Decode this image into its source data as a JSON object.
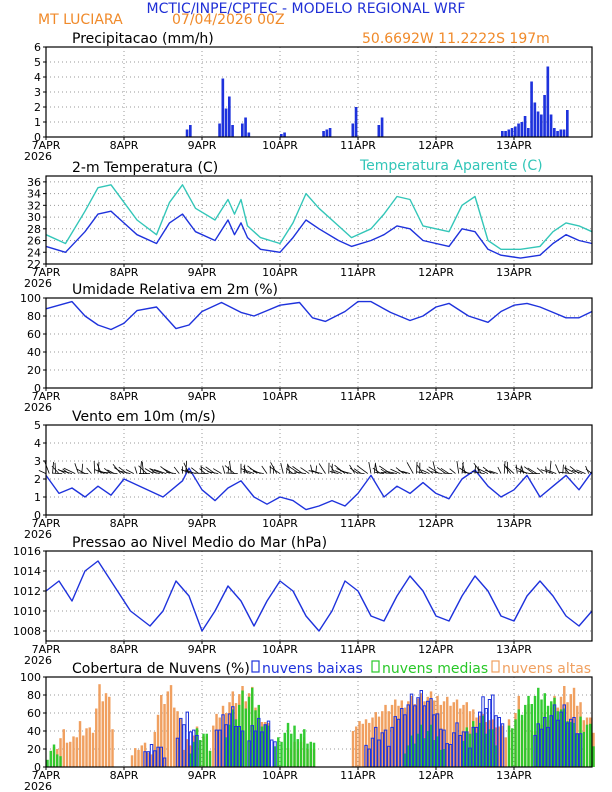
{
  "header": {
    "title": "MCTIC/INPE/CPTEC - MODELO REGIONAL WRF",
    "station": "MT LUCIARA",
    "run": "07/04/2026 00Z",
    "coords": "50.6692W 11.2222S 197m",
    "title_color": "#1f2fd6",
    "info_color": "#f08a2a"
  },
  "x_axis": {
    "days": [
      "7APR",
      "8APR",
      "9APR",
      "10APR",
      "11APR",
      "12APR",
      "13APR"
    ],
    "year": "2026",
    "range_hours": [
      0,
      168
    ]
  },
  "colors": {
    "blue": "#1e32dc",
    "cyan": "#33c6b8",
    "green": "#28c828",
    "orange": "#f0a060",
    "black": "#000000"
  },
  "chart_data": [
    {
      "id": "precip",
      "type": "bar",
      "title": "Precipitacao (mm/h)",
      "ylim": [
        0,
        6
      ],
      "yticks": [
        "0",
        "1",
        "2",
        "3",
        "4",
        "5",
        "6"
      ],
      "x_unit": "hours since 7APR 00Z",
      "x": [
        43,
        44,
        53,
        54,
        55,
        56,
        57,
        60,
        61,
        62,
        72,
        73,
        85,
        86,
        87,
        94,
        95,
        102,
        103,
        140,
        141,
        142,
        143,
        144,
        145,
        146,
        147,
        148,
        149,
        150,
        151,
        152,
        153,
        154,
        155,
        156,
        157,
        158,
        159,
        160
      ],
      "values": [
        0.5,
        0.8,
        0.9,
        3.9,
        1.9,
        2.7,
        0.8,
        0.9,
        1.3,
        0.3,
        0.2,
        0.3,
        0.4,
        0.5,
        0.6,
        0.9,
        2.0,
        0.8,
        1.3,
        0.4,
        0.4,
        0.5,
        0.6,
        0.7,
        0.9,
        1.0,
        1.4,
        0.6,
        3.7,
        2.3,
        1.7,
        1.5,
        2.8,
        4.7,
        1.5,
        0.6,
        0.4,
        0.5,
        0.5,
        1.8
      ]
    },
    {
      "id": "temperature",
      "type": "line",
      "title": "2-m Temperatura (C)",
      "title_right": "Temperatura Aparente (C)",
      "ylim": [
        22,
        37
      ],
      "yticks": [
        "22",
        "24",
        "26",
        "28",
        "30",
        "32",
        "34",
        "36"
      ],
      "series": [
        {
          "name": "2-m Temperatura (C)",
          "color": "blue",
          "x": [
            0,
            6,
            12,
            16,
            20,
            22,
            28,
            34,
            38,
            42,
            46,
            52,
            56,
            58,
            60,
            62,
            66,
            72,
            76,
            80,
            84,
            90,
            94,
            100,
            104,
            108,
            112,
            116,
            124,
            128,
            132,
            136,
            140,
            146,
            152,
            156,
            160,
            164,
            168
          ],
          "values": [
            25.0,
            24.0,
            27.5,
            30.5,
            31.0,
            30.0,
            27.0,
            25.5,
            29.0,
            30.5,
            27.5,
            26.0,
            29.5,
            27.0,
            29.0,
            26.5,
            24.5,
            24.0,
            26.5,
            29.5,
            28.0,
            26.0,
            25.0,
            26.0,
            27.0,
            28.5,
            28.0,
            26.0,
            25.0,
            28.0,
            27.5,
            24.5,
            23.5,
            23.0,
            23.5,
            25.5,
            27.0,
            26.0,
            25.5
          ]
        },
        {
          "name": "Temperatura Aparente (C)",
          "color": "cyan",
          "x": [
            0,
            6,
            12,
            16,
            20,
            22,
            28,
            34,
            38,
            42,
            46,
            52,
            56,
            58,
            60,
            62,
            66,
            72,
            76,
            80,
            84,
            90,
            94,
            100,
            104,
            108,
            112,
            116,
            124,
            128,
            132,
            136,
            140,
            146,
            152,
            156,
            160,
            164,
            168
          ],
          "values": [
            27.0,
            25.5,
            31.0,
            35.0,
            35.5,
            34.0,
            29.5,
            27.0,
            32.5,
            35.5,
            31.5,
            29.5,
            33.0,
            30.5,
            33.0,
            28.5,
            26.5,
            25.5,
            29.0,
            34.0,
            31.5,
            28.5,
            26.5,
            28.0,
            30.5,
            33.5,
            33.0,
            28.5,
            27.5,
            32.0,
            33.5,
            26.0,
            24.5,
            24.5,
            25.0,
            27.5,
            29.0,
            28.5,
            27.5
          ]
        }
      ]
    },
    {
      "id": "humidity",
      "type": "line",
      "title": "Umidade Relativa em 2m (%)",
      "ylim": [
        0,
        100
      ],
      "yticks": [
        "0",
        "20",
        "40",
        "60",
        "80",
        "100"
      ],
      "series": [
        {
          "name": "Umidade Relativa",
          "color": "blue",
          "x": [
            0,
            8,
            12,
            16,
            20,
            24,
            28,
            34,
            40,
            44,
            48,
            54,
            60,
            64,
            68,
            72,
            78,
            82,
            86,
            92,
            96,
            100,
            106,
            112,
            116,
            120,
            124,
            130,
            136,
            140,
            144,
            148,
            152,
            156,
            160,
            164,
            168
          ],
          "values": [
            88,
            96,
            80,
            70,
            65,
            72,
            86,
            90,
            66,
            70,
            85,
            95,
            84,
            80,
            86,
            92,
            95,
            78,
            74,
            85,
            96,
            96,
            84,
            75,
            80,
            90,
            94,
            80,
            73,
            85,
            92,
            94,
            90,
            84,
            78,
            78,
            85
          ]
        }
      ]
    },
    {
      "id": "wind",
      "type": "line",
      "title": "Vento em 10m (m/s)",
      "ylim": [
        0,
        5
      ],
      "yticks": [
        "0",
        "1",
        "2",
        "3",
        "4",
        "5"
      ],
      "series": [
        {
          "name": "Vento em 10m",
          "color": "blue",
          "x": [
            0,
            4,
            8,
            12,
            16,
            20,
            24,
            30,
            36,
            42,
            44,
            48,
            52,
            56,
            60,
            64,
            68,
            72,
            76,
            80,
            84,
            88,
            92,
            96,
            100,
            104,
            108,
            112,
            116,
            120,
            124,
            128,
            132,
            136,
            140,
            144,
            148,
            152,
            156,
            160,
            164,
            168
          ],
          "values": [
            2.2,
            1.2,
            1.5,
            1.0,
            1.6,
            1.1,
            2.0,
            1.5,
            1.0,
            1.9,
            2.6,
            1.4,
            0.8,
            1.5,
            1.9,
            1.0,
            0.6,
            1.0,
            0.8,
            0.3,
            0.5,
            0.8,
            0.5,
            1.2,
            2.2,
            1.0,
            1.6,
            1.2,
            1.8,
            1.2,
            0.9,
            2.0,
            2.5,
            1.6,
            1.0,
            1.4,
            2.2,
            1.0,
            1.6,
            2.2,
            1.4,
            2.4
          ]
        }
      ]
    },
    {
      "id": "pressure",
      "type": "line",
      "title": "Pressao ao Nivel Medio do Mar (hPa)",
      "ylim": [
        1007,
        1016
      ],
      "yticks": [
        "1008",
        "1010",
        "1012",
        "1014",
        "1016"
      ],
      "series": [
        {
          "name": "Pressao",
          "color": "blue",
          "x": [
            0,
            4,
            8,
            12,
            16,
            20,
            26,
            32,
            36,
            40,
            44,
            48,
            52,
            56,
            60,
            64,
            68,
            72,
            76,
            80,
            84,
            88,
            92,
            96,
            100,
            104,
            108,
            112,
            116,
            120,
            124,
            128,
            132,
            136,
            140,
            144,
            148,
            152,
            156,
            160,
            164,
            168
          ],
          "values": [
            1012,
            1013,
            1011,
            1014,
            1015,
            1013,
            1010,
            1008.5,
            1010,
            1013,
            1011.5,
            1008,
            1010,
            1012.5,
            1011,
            1008.5,
            1011,
            1013,
            1012,
            1009.5,
            1008,
            1010,
            1013,
            1012,
            1009.5,
            1009,
            1011.5,
            1013.5,
            1012,
            1009.5,
            1009,
            1011.5,
            1013.5,
            1012,
            1009.5,
            1009,
            1011.5,
            1013,
            1011.5,
            1009.5,
            1008.5,
            1010
          ]
        }
      ]
    },
    {
      "id": "clouds",
      "type": "bar",
      "title": "Cobertura de Nuvens (%)",
      "legend": [
        "nuvens baixas",
        "nuvens medias",
        "nuvens altas"
      ],
      "ylim": [
        0,
        100
      ],
      "yticks": [
        "0",
        "20",
        "40",
        "60",
        "80",
        "100"
      ],
      "x_start": 0,
      "x_step": 1,
      "series": [
        {
          "name": "nuvens baixas",
          "color": "blue",
          "values": [
            0,
            0,
            0,
            0,
            0,
            0,
            0,
            0,
            0,
            0,
            0,
            0,
            0,
            0,
            0,
            0,
            0,
            0,
            0,
            0,
            0,
            0,
            0,
            0,
            0,
            0,
            0,
            0,
            0,
            0,
            0,
            0,
            0,
            0,
            0,
            0,
            0,
            0,
            0,
            0,
            0,
            0,
            0,
            0,
            0,
            0,
            0,
            0,
            0,
            0,
            0,
            0,
            0,
            0,
            0,
            0,
            0,
            0,
            0,
            0,
            0,
            0,
            0,
            0,
            0,
            0,
            0,
            0,
            0,
            0,
            0,
            0,
            0,
            0,
            0,
            0,
            0,
            0,
            0,
            0,
            0,
            0,
            0,
            0,
            0,
            0,
            0,
            0,
            0,
            0,
            0,
            0,
            0,
            0,
            0,
            0,
            0,
            0,
            0,
            0,
            0,
            0,
            0,
            0,
            0,
            0,
            0,
            0,
            0,
            0,
            0,
            0,
            0,
            0,
            0,
            0,
            0,
            0,
            0,
            0,
            0,
            0,
            0,
            0,
            0,
            0,
            0,
            0,
            0,
            0,
            0,
            0,
            0,
            0,
            0,
            0,
            0,
            0,
            0,
            0,
            0,
            0,
            0,
            0,
            0,
            0,
            0,
            0,
            0,
            0,
            0,
            0,
            0,
            0,
            0,
            0,
            0,
            0,
            0,
            0,
            0,
            0,
            0,
            0,
            0,
            0,
            0,
            0,
            0
          ]
        },
        {
          "name": "nuvens medias",
          "color": "green",
          "values": [
            0,
            0,
            0,
            0,
            0,
            0,
            0,
            0,
            0,
            0,
            0,
            0,
            0,
            0,
            0,
            0,
            0,
            0,
            0,
            0,
            0,
            0,
            0,
            0,
            0,
            0,
            0,
            0,
            0,
            0,
            0,
            0,
            0,
            0,
            0,
            0,
            0,
            0,
            0,
            0,
            0,
            0,
            0,
            0,
            0,
            0,
            0,
            0,
            0,
            0,
            0,
            0,
            0,
            0,
            0,
            0,
            0,
            0,
            0,
            0,
            0,
            0,
            0,
            0,
            0,
            0,
            0,
            0,
            0,
            0,
            0,
            0,
            0,
            0,
            0,
            0,
            0,
            0,
            0,
            0,
            0,
            0,
            0,
            0,
            0,
            0,
            0,
            0,
            0,
            0,
            0,
            0,
            0,
            0,
            0,
            0,
            0,
            0,
            0,
            0,
            0,
            0,
            0,
            0,
            0,
            0,
            0,
            0,
            0,
            0,
            0,
            0,
            0,
            0,
            0,
            0,
            0,
            0,
            0,
            0,
            0,
            0,
            0,
            0,
            0,
            0,
            0,
            0,
            0,
            0,
            0,
            0,
            0,
            0,
            0,
            0,
            0,
            0,
            0,
            0,
            0,
            0,
            0,
            0,
            0,
            0,
            0,
            0,
            0,
            0,
            0,
            0,
            0,
            0,
            0,
            0,
            0,
            0,
            0,
            0,
            0,
            0,
            0,
            0,
            0,
            0,
            0,
            0,
            0
          ]
        },
        {
          "name": "nuvens altas",
          "color": "orange",
          "values": [
            0,
            0,
            0,
            0,
            0,
            0,
            0,
            0,
            0,
            0,
            0,
            0,
            0,
            0,
            0,
            0,
            0,
            0,
            0,
            0,
            0,
            0,
            0,
            0,
            0,
            0,
            0,
            0,
            0,
            0,
            0,
            0,
            0,
            0,
            0,
            0,
            0,
            0,
            0,
            0,
            0,
            0,
            0,
            0,
            0,
            0,
            0,
            0,
            0,
            0,
            0,
            0,
            0,
            0,
            0,
            0,
            0,
            0,
            0,
            0,
            0,
            0,
            0,
            0,
            0,
            0,
            0,
            0,
            0,
            0,
            0,
            0,
            0,
            0,
            0,
            0,
            0,
            0,
            0,
            0,
            0,
            0,
            0,
            0,
            0,
            0,
            0,
            0,
            0,
            0,
            0,
            0,
            0,
            0,
            0,
            0,
            0,
            0,
            0,
            0,
            0,
            0,
            0,
            0,
            0,
            0,
            0,
            0,
            0,
            0,
            0,
            0,
            0,
            0,
            0,
            0,
            0,
            0,
            0,
            0,
            0,
            0,
            0,
            0,
            0,
            0,
            0,
            0,
            0,
            0,
            0,
            0,
            0,
            0,
            0,
            0,
            0,
            0,
            0,
            0,
            0,
            0,
            0,
            0,
            0,
            0,
            0,
            0,
            0,
            0,
            0,
            0,
            0,
            0,
            0,
            0,
            0,
            0,
            0,
            0,
            0,
            0,
            0,
            0,
            0,
            0,
            0,
            0,
            0
          ]
        }
      ]
    }
  ]
}
